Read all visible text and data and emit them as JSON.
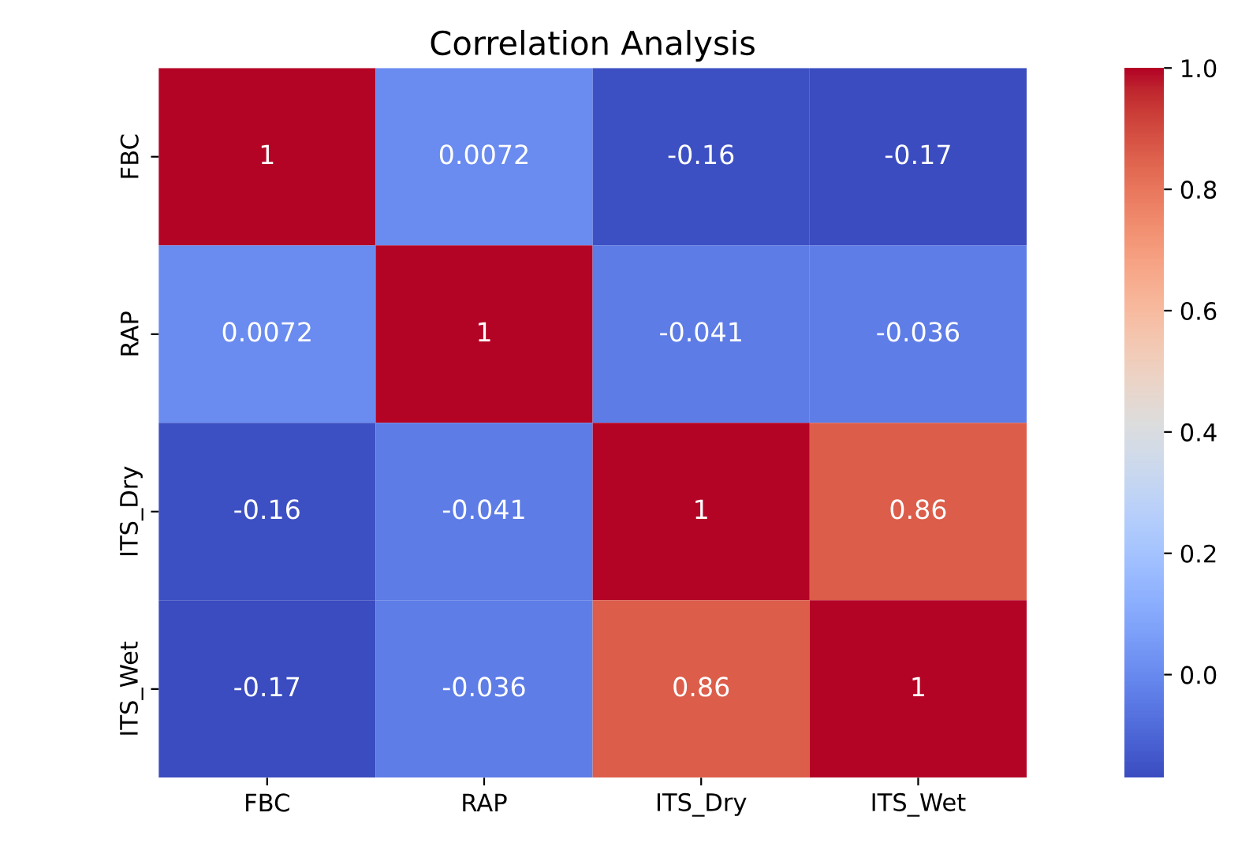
{
  "chart_data": {
    "type": "heatmap",
    "title": "Correlation Analysis",
    "categories": [
      "FBC",
      "RAP",
      "ITS_Dry",
      "ITS_Wet"
    ],
    "y_categories": [
      "FBC",
      "RAP",
      "ITS_Dry",
      "ITS_Wet"
    ],
    "cells": [
      [
        1,
        0.0072,
        -0.16,
        -0.17
      ],
      [
        0.0072,
        1,
        -0.041,
        -0.036
      ],
      [
        -0.16,
        -0.041,
        1,
        0.86
      ],
      [
        -0.17,
        -0.036,
        0.86,
        1
      ]
    ],
    "clim": [
      -0.17,
      1
    ],
    "cticks": [
      {
        "value": 0,
        "label": "0.0"
      },
      {
        "value": 0.2,
        "label": "0.2"
      },
      {
        "value": 0.4,
        "label": "0.4"
      },
      {
        "value": 0.6,
        "label": "0.6"
      },
      {
        "value": 0.8,
        "label": "0.8"
      },
      {
        "value": 1,
        "label": "1.0"
      }
    ],
    "data_labels": true
  }
}
